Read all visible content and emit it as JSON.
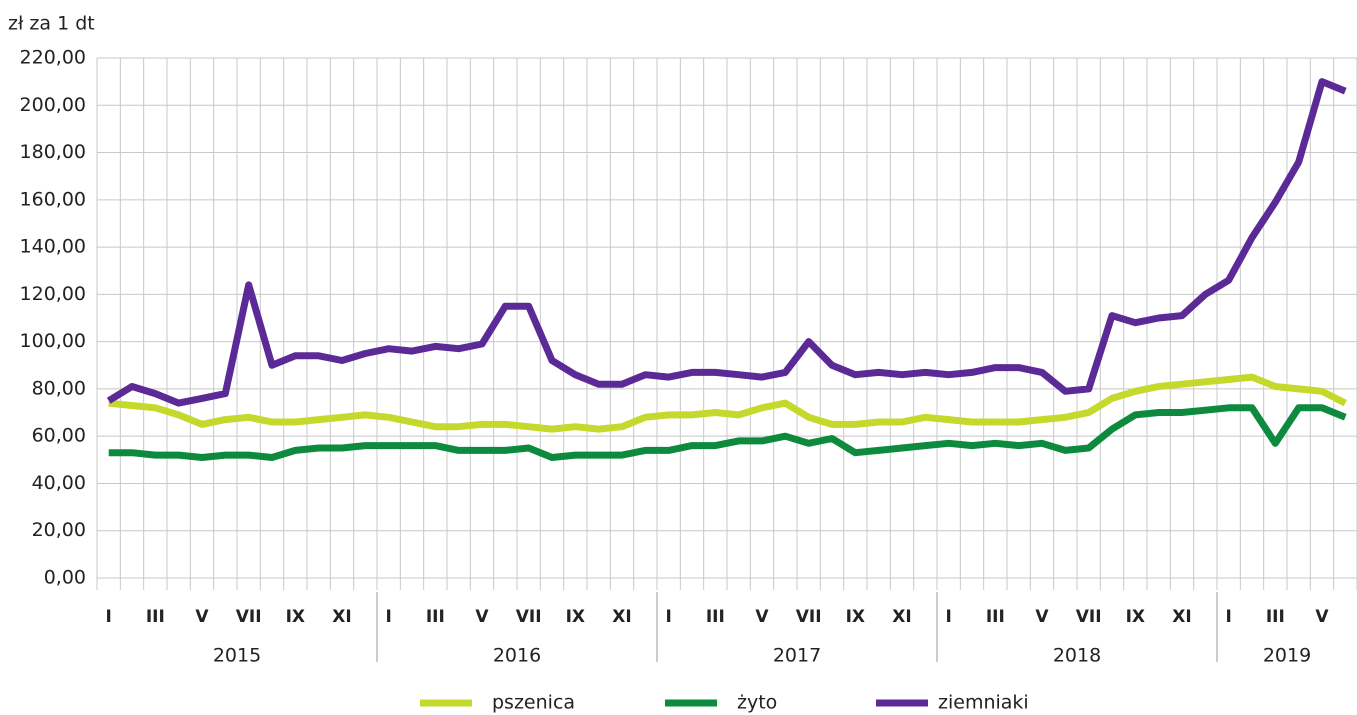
{
  "chart_data": {
    "type": "line",
    "y_axis_label": "zł za 1 dt",
    "categories": [
      "I",
      null,
      "III",
      null,
      "V",
      null,
      "VII",
      null,
      "IX",
      null,
      "XI",
      null,
      "I",
      null,
      "III",
      null,
      "V",
      null,
      "VII",
      null,
      "IX",
      null,
      "XI",
      null,
      "I",
      null,
      "III",
      null,
      "V",
      null,
      "VII",
      null,
      "IX",
      null,
      "XI",
      null,
      "I",
      null,
      "III",
      null,
      "V",
      null,
      "VII",
      null,
      "IX",
      null,
      "XI",
      null,
      "I",
      null,
      "III",
      null,
      "V",
      null
    ],
    "years": [
      "2015",
      "2016",
      "2017",
      "2018",
      "2019"
    ],
    "series": [
      {
        "name": "pszenica",
        "color": "#c5d92d",
        "values": [
          74,
          73,
          72,
          69,
          65,
          67,
          68,
          66,
          66,
          67,
          68,
          69,
          68,
          66,
          64,
          64,
          65,
          65,
          64,
          63,
          64,
          63,
          64,
          68,
          69,
          69,
          70,
          69,
          72,
          74,
          68,
          65,
          65,
          66,
          66,
          68,
          67,
          66,
          66,
          66,
          67,
          68,
          70,
          76,
          79,
          81,
          82,
          83,
          84,
          85,
          81,
          80,
          79,
          74
        ]
      },
      {
        "name": "żyto",
        "color": "#0e8a3e",
        "values": [
          53,
          53,
          52,
          52,
          51,
          52,
          52,
          51,
          54,
          55,
          55,
          56,
          56,
          56,
          56,
          54,
          54,
          54,
          55,
          51,
          52,
          52,
          52,
          54,
          54,
          56,
          56,
          58,
          58,
          60,
          57,
          59,
          53,
          54,
          55,
          56,
          57,
          56,
          57,
          56,
          57,
          54,
          55,
          63,
          69,
          70,
          70,
          71,
          72,
          72,
          57,
          72,
          72,
          68
        ]
      },
      {
        "name": "ziemniaki",
        "color": "#5b2a96",
        "values": [
          75,
          81,
          78,
          74,
          76,
          78,
          124,
          90,
          94,
          94,
          92,
          95,
          97,
          96,
          98,
          97,
          99,
          115,
          115,
          92,
          86,
          82,
          82,
          86,
          85,
          87,
          87,
          86,
          85,
          87,
          100,
          90,
          86,
          87,
          86,
          87,
          86,
          87,
          89,
          89,
          87,
          79,
          80,
          111,
          108,
          110,
          111,
          120,
          126,
          144,
          159,
          176,
          210,
          206
        ]
      }
    ],
    "ylim": [
      0,
      220
    ],
    "yticks": [
      {
        "value": 0,
        "label": "0,00"
      },
      {
        "value": 20,
        "label": "20,00"
      },
      {
        "value": 40,
        "label": "40,00"
      },
      {
        "value": 60,
        "label": "60,00"
      },
      {
        "value": 80,
        "label": "80,00"
      },
      {
        "value": 100,
        "label": "100,00"
      },
      {
        "value": 120,
        "label": "120,00"
      },
      {
        "value": 140,
        "label": "140,00"
      },
      {
        "value": 160,
        "label": "160,00"
      },
      {
        "value": 180,
        "label": "180,00"
      },
      {
        "value": 200,
        "label": "200,00"
      },
      {
        "value": 220,
        "label": "220,00"
      }
    ],
    "grid": true
  }
}
